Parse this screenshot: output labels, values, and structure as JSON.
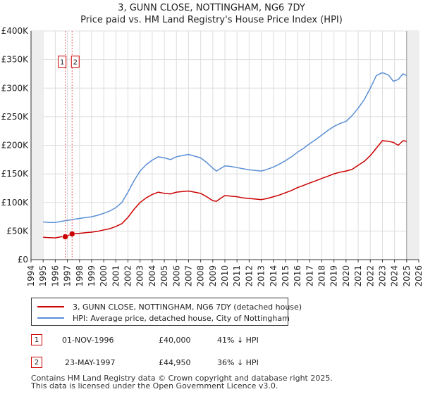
{
  "chart_data": {
    "type": "line",
    "title": "3, GUNN CLOSE, NOTTINGHAM, NG6 7DY",
    "subtitle": "Price paid vs. HM Land Registry's House Price Index (HPI)",
    "xlabel": "",
    "ylabel": "",
    "xlim": [
      1994,
      2026
    ],
    "ylim": [
      0,
      400000
    ],
    "x_ticks": [
      "1994",
      "1995",
      "1996",
      "1997",
      "1998",
      "1999",
      "2000",
      "2001",
      "2002",
      "2003",
      "2004",
      "2005",
      "2006",
      "2007",
      "2008",
      "2009",
      "2010",
      "2011",
      "2012",
      "2013",
      "2014",
      "2015",
      "2016",
      "2017",
      "2018",
      "2019",
      "2020",
      "2021",
      "2022",
      "2023",
      "2024",
      "2025",
      "2026"
    ],
    "y_ticks": [
      {
        "value": 0,
        "label": "£0"
      },
      {
        "value": 50000,
        "label": "£50K"
      },
      {
        "value": 100000,
        "label": "£100K"
      },
      {
        "value": 150000,
        "label": "£150K"
      },
      {
        "value": 200000,
        "label": "£200K"
      },
      {
        "value": 250000,
        "label": "£250K"
      },
      {
        "value": 300000,
        "label": "£300K"
      },
      {
        "value": 350000,
        "label": "£350K"
      },
      {
        "value": 400000,
        "label": "£400K"
      }
    ],
    "grid": true,
    "data_start": 1995.0,
    "data_end": 2025.0,
    "series": [
      {
        "name": "3, GUNN CLOSE, NOTTINGHAM, NG6 7DY (detached house)",
        "color": "#cc0000",
        "x": [
          1995.0,
          1995.5,
          1996.0,
          1996.5,
          1996.83,
          1997.39,
          1997.5,
          1998.0,
          1998.5,
          1999.0,
          1999.5,
          2000.0,
          2000.5,
          2001.0,
          2001.5,
          2002.0,
          2002.5,
          2003.0,
          2003.5,
          2004.0,
          2004.5,
          2005.0,
          2005.5,
          2006.0,
          2006.5,
          2007.0,
          2007.5,
          2008.0,
          2008.5,
          2009.0,
          2009.3,
          2009.7,
          2010.0,
          2010.5,
          2011.0,
          2011.5,
          2012.0,
          2012.5,
          2013.0,
          2013.5,
          2014.0,
          2014.5,
          2015.0,
          2015.5,
          2016.0,
          2016.5,
          2017.0,
          2017.5,
          2018.0,
          2018.5,
          2019.0,
          2019.5,
          2020.0,
          2020.5,
          2021.0,
          2021.5,
          2022.0,
          2022.5,
          2023.0,
          2023.5,
          2023.9,
          2024.3,
          2024.7,
          2025.0
        ],
        "y": [
          39000,
          38500,
          38000,
          40000,
          40000,
          44950,
          45500,
          46000,
          47000,
          48000,
          49500,
          52000,
          54000,
          58000,
          63000,
          74000,
          88000,
          100000,
          108000,
          114000,
          118000,
          116000,
          115000,
          118000,
          119000,
          120000,
          118000,
          116000,
          110000,
          103000,
          102000,
          108000,
          112000,
          111000,
          110000,
          108000,
          107000,
          106000,
          105000,
          107000,
          110000,
          113000,
          117000,
          121000,
          126000,
          130000,
          134000,
          138000,
          142000,
          146000,
          150000,
          153000,
          155000,
          158000,
          165000,
          172000,
          182000,
          195000,
          208000,
          207000,
          205000,
          200000,
          208000,
          207000
        ]
      },
      {
        "name": "HPI: Average price, detached house, City of Nottingham",
        "color": "#5b8fd6",
        "x": [
          1995.0,
          1995.5,
          1996.0,
          1996.5,
          1996.83,
          1997.39,
          1997.5,
          1998.0,
          1998.5,
          1999.0,
          1999.5,
          2000.0,
          2000.5,
          2001.0,
          2001.5,
          2002.0,
          2002.5,
          2003.0,
          2003.5,
          2004.0,
          2004.5,
          2005.0,
          2005.5,
          2006.0,
          2006.5,
          2007.0,
          2007.5,
          2008.0,
          2008.5,
          2009.0,
          2009.3,
          2009.7,
          2010.0,
          2010.5,
          2011.0,
          2011.5,
          2012.0,
          2012.5,
          2013.0,
          2013.5,
          2014.0,
          2014.5,
          2015.0,
          2015.5,
          2016.0,
          2016.5,
          2017.0,
          2017.5,
          2018.0,
          2018.5,
          2019.0,
          2019.5,
          2020.0,
          2020.5,
          2021.0,
          2021.5,
          2022.0,
          2022.5,
          2023.0,
          2023.5,
          2023.9,
          2024.3,
          2024.7,
          2025.0
        ],
        "y": [
          66000,
          65000,
          65000,
          67000,
          68000,
          70000,
          70500,
          72000,
          73500,
          75000,
          77500,
          81000,
          85000,
          91000,
          100000,
          118000,
          138000,
          155000,
          166000,
          174000,
          180000,
          178000,
          175000,
          180000,
          182000,
          184000,
          181000,
          178000,
          170000,
          160000,
          155000,
          160000,
          164000,
          163000,
          161000,
          159000,
          157000,
          156000,
          155000,
          158000,
          162000,
          167000,
          173000,
          180000,
          188000,
          195000,
          203000,
          210000,
          218000,
          226000,
          233000,
          238000,
          242000,
          252000,
          265000,
          280000,
          300000,
          322000,
          327000,
          323000,
          312000,
          315000,
          325000,
          322000
        ]
      }
    ],
    "annotations": [
      {
        "label": "1",
        "x": 1996.83,
        "y": 40000
      },
      {
        "label": "2",
        "x": 1997.39,
        "y": 44950
      }
    ],
    "marker_box_value": 345000
  },
  "legend": {
    "items": [
      {
        "label": "3, GUNN CLOSE, NOTTINGHAM, NG6 7DY (detached house)",
        "color": "#cc0000"
      },
      {
        "label": "HPI: Average price, detached house, City of Nottingham",
        "color": "#5b8fd6"
      }
    ]
  },
  "transactions": [
    {
      "badge": "1",
      "date": "01-NOV-1996",
      "price": "£40,000",
      "hpi": "41% ↓ HPI"
    },
    {
      "badge": "2",
      "date": "23-MAY-1997",
      "price": "£44,950",
      "hpi": "36% ↓ HPI"
    }
  ],
  "footer": {
    "line1": "Contains HM Land Registry data © Crown copyright and database right 2025.",
    "line2": "This data is licensed under the Open Government Licence v3.0."
  }
}
